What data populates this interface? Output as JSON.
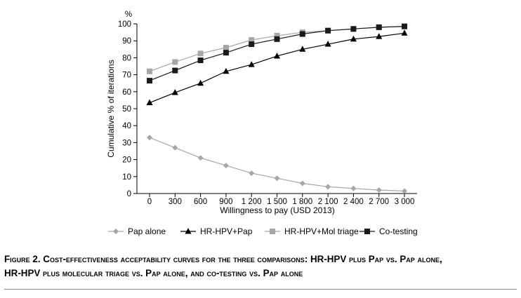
{
  "chart_data": {
    "type": "line",
    "categories": [
      "0",
      "300",
      "600",
      "900",
      "1 200",
      "1 500",
      "1 800",
      "2 100",
      "2 400",
      "2 700",
      "3 000"
    ],
    "series": [
      {
        "name": "Pap alone",
        "marker": "diamond",
        "color": "#a6a6a6",
        "values": [
          33,
          27,
          21,
          16.5,
          12,
          9,
          6,
          4,
          3,
          2,
          1.5
        ]
      },
      {
        "name": "HR-HPV+Pap",
        "marker": "triangle",
        "color": "#000000",
        "values": [
          53.5,
          59.5,
          65,
          72,
          76,
          81,
          85,
          88,
          91,
          92.5,
          94.5
        ]
      },
      {
        "name": "HR-HPV+Mol triage",
        "marker": "square",
        "color": "#a6a6a6",
        "values": [
          72,
          77.5,
          82.5,
          86,
          90.5,
          93,
          95,
          96,
          97,
          98,
          98.5
        ]
      },
      {
        "name": "Co-testing",
        "marker": "square",
        "color": "#1a1a1a",
        "values": [
          66.5,
          72.5,
          78.5,
          83,
          88,
          91,
          94,
          96,
          97,
          98,
          98.5
        ]
      }
    ],
    "title": "",
    "xlabel": "Willingness to pay (USD 2013)",
    "ylabel": "Cumulative % of iterations",
    "yunit": "%",
    "ylim": [
      0,
      100
    ],
    "yticks": [
      0,
      10,
      20,
      30,
      40,
      50,
      60,
      70,
      80,
      90,
      100
    ],
    "grid": false,
    "legend_position": "bottom"
  },
  "caption": {
    "line1": "Figure 2. Cost-effectiveness acceptability curves for the three comparisons: HR-HPV plus Pap vs. Pap alone,",
    "line2": "HR-HPV plus molecular triage vs. Pap alone, and co-testing vs. Pap alone"
  }
}
